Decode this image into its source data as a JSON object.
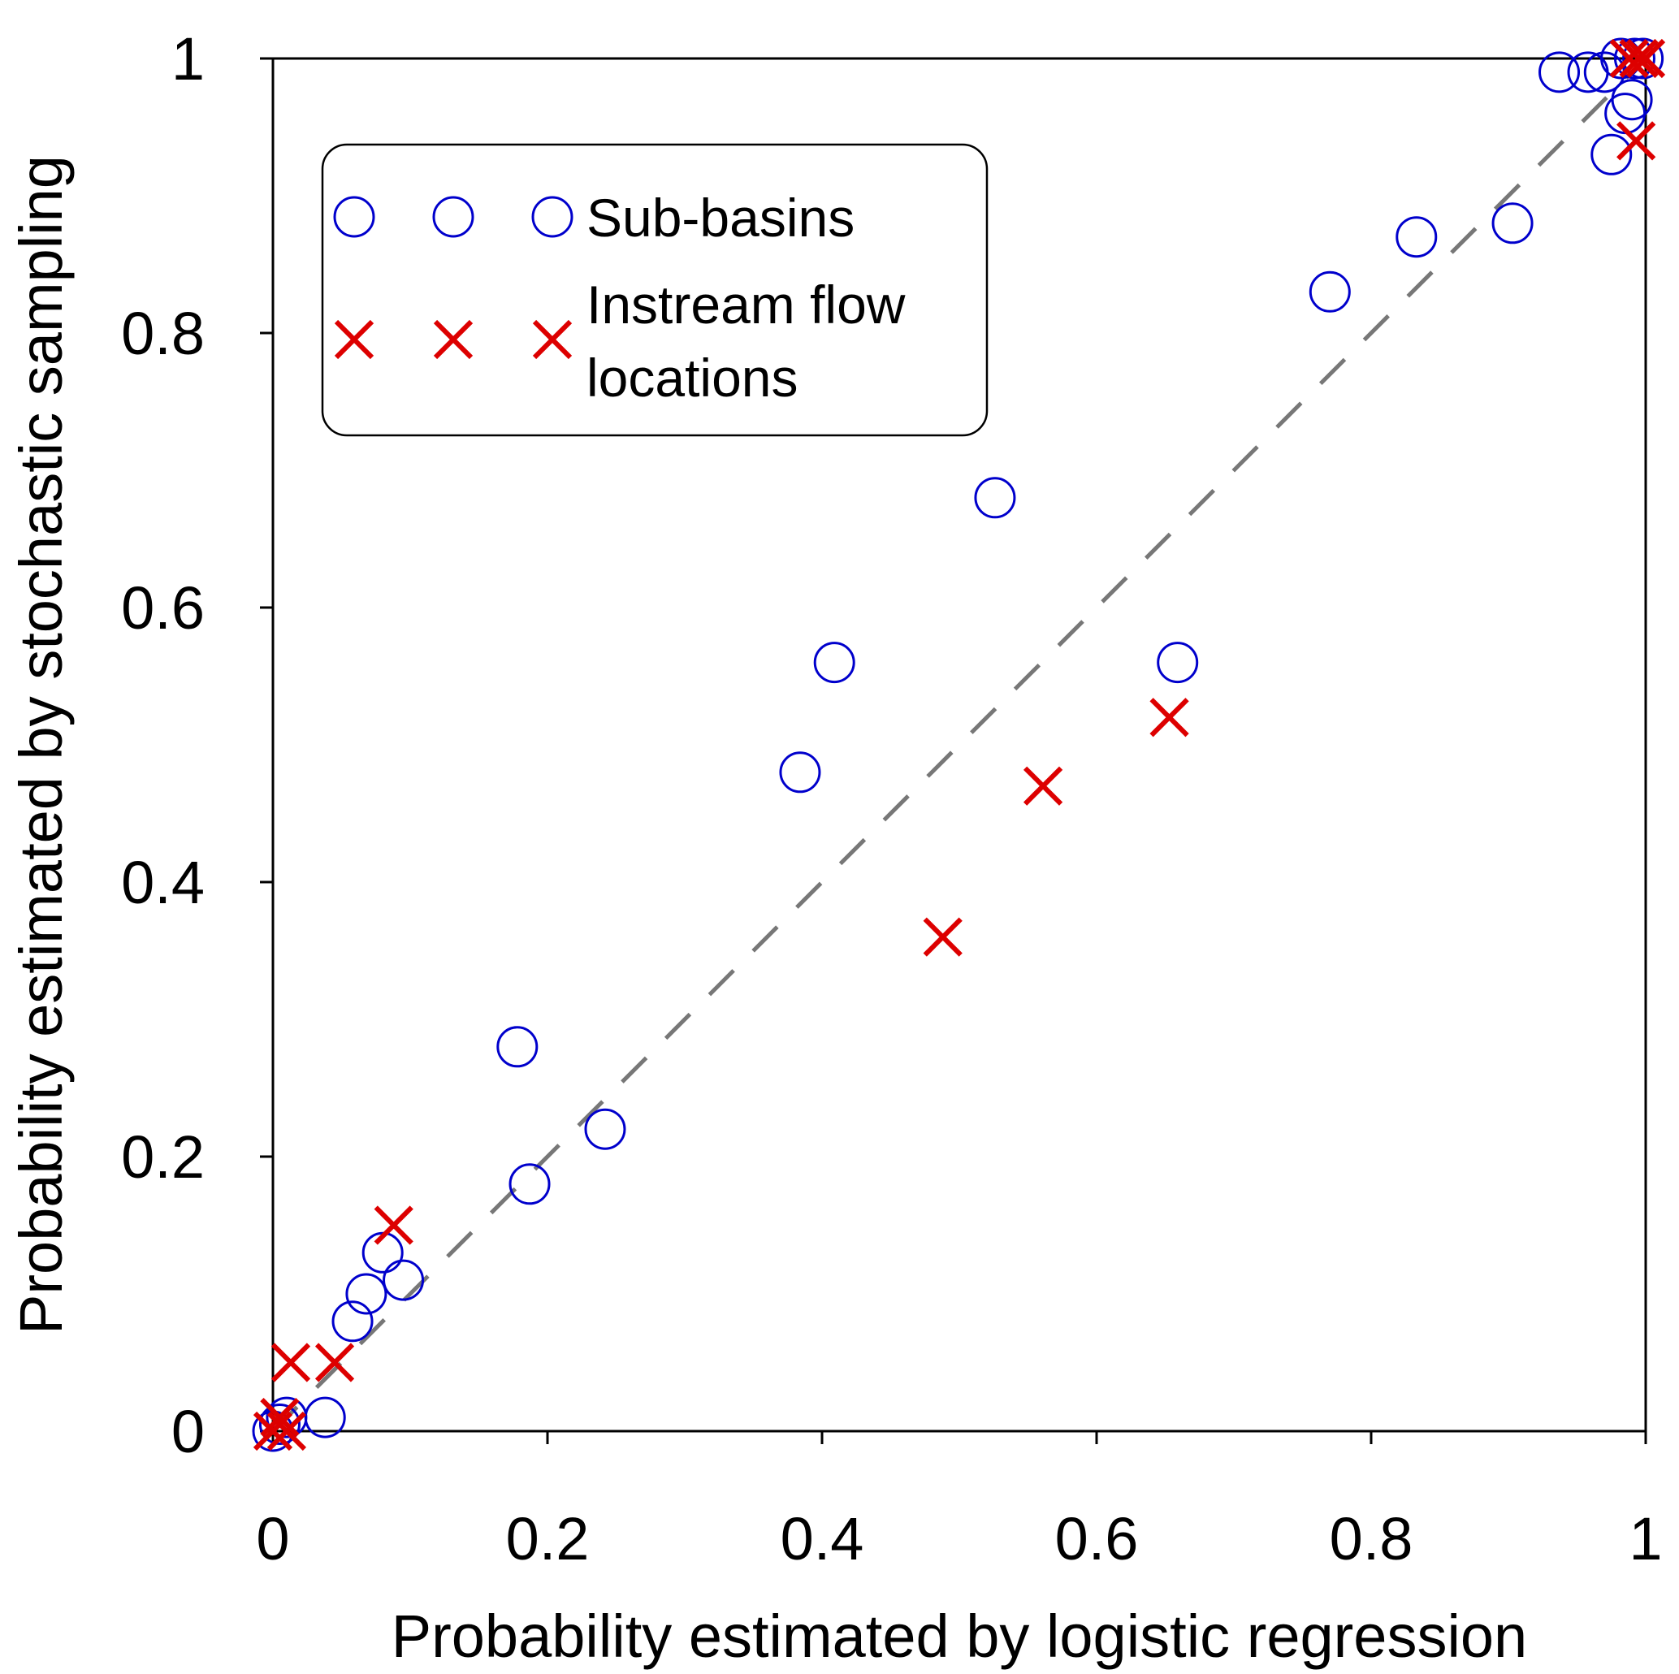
{
  "chart_data": {
    "type": "scatter",
    "title": "",
    "xlabel": "Probability estimated by logistic regression",
    "ylabel": "Probability estimated by stochastic sampling",
    "xlim": [
      0,
      1
    ],
    "ylim": [
      0,
      1
    ],
    "x_ticks": [
      "0",
      "0.2",
      "0.4",
      "0.6",
      "0.8",
      "1"
    ],
    "y_ticks": [
      "0",
      "0.2",
      "0.4",
      "0.6",
      "0.8",
      "1"
    ],
    "grid": false,
    "reference_line": {
      "style": "dashed",
      "color": "#777777",
      "from": [
        0,
        0
      ],
      "to": [
        1,
        1
      ]
    },
    "legend_position": "top-left",
    "series": [
      {
        "name": "Sub-basins",
        "marker": "circle",
        "color": "#0000cc",
        "points": [
          [
            0.0,
            0.0
          ],
          [
            0.005,
            0.005
          ],
          [
            0.01,
            0.01
          ],
          [
            0.038,
            0.01
          ],
          [
            0.058,
            0.08
          ],
          [
            0.068,
            0.1
          ],
          [
            0.08,
            0.13
          ],
          [
            0.095,
            0.11
          ],
          [
            0.178,
            0.28
          ],
          [
            0.187,
            0.18
          ],
          [
            0.242,
            0.22
          ],
          [
            0.384,
            0.48
          ],
          [
            0.409,
            0.56
          ],
          [
            0.526,
            0.68
          ],
          [
            0.659,
            0.56
          ],
          [
            0.77,
            0.83
          ],
          [
            0.833,
            0.87
          ],
          [
            0.903,
            0.88
          ],
          [
            0.937,
            0.99
          ],
          [
            0.958,
            0.99
          ],
          [
            0.97,
            0.99
          ],
          [
            0.982,
            1.0
          ],
          [
            0.992,
            1.0
          ],
          [
            0.998,
            1.0
          ],
          [
            0.99,
            0.97
          ],
          [
            0.985,
            0.96
          ],
          [
            0.975,
            0.93
          ]
        ]
      },
      {
        "name": "Instream flow locations",
        "marker": "x",
        "color": "#dd0000",
        "points": [
          [
            0.0,
            0.0
          ],
          [
            0.005,
            0.01
          ],
          [
            0.01,
            0.0
          ],
          [
            0.013,
            0.05
          ],
          [
            0.045,
            0.05
          ],
          [
            0.088,
            0.15
          ],
          [
            0.488,
            0.36
          ],
          [
            0.561,
            0.47
          ],
          [
            0.653,
            0.52
          ],
          [
            0.988,
            1.0
          ],
          [
            0.995,
            1.0
          ],
          [
            1.0,
            1.0
          ],
          [
            0.993,
            0.94
          ]
        ]
      }
    ],
    "legend": {
      "entries": [
        {
          "label": "Sub-basins",
          "marker": "circle"
        },
        {
          "label_lines": [
            "Instream flow",
            "locations"
          ],
          "marker": "x"
        }
      ]
    }
  }
}
